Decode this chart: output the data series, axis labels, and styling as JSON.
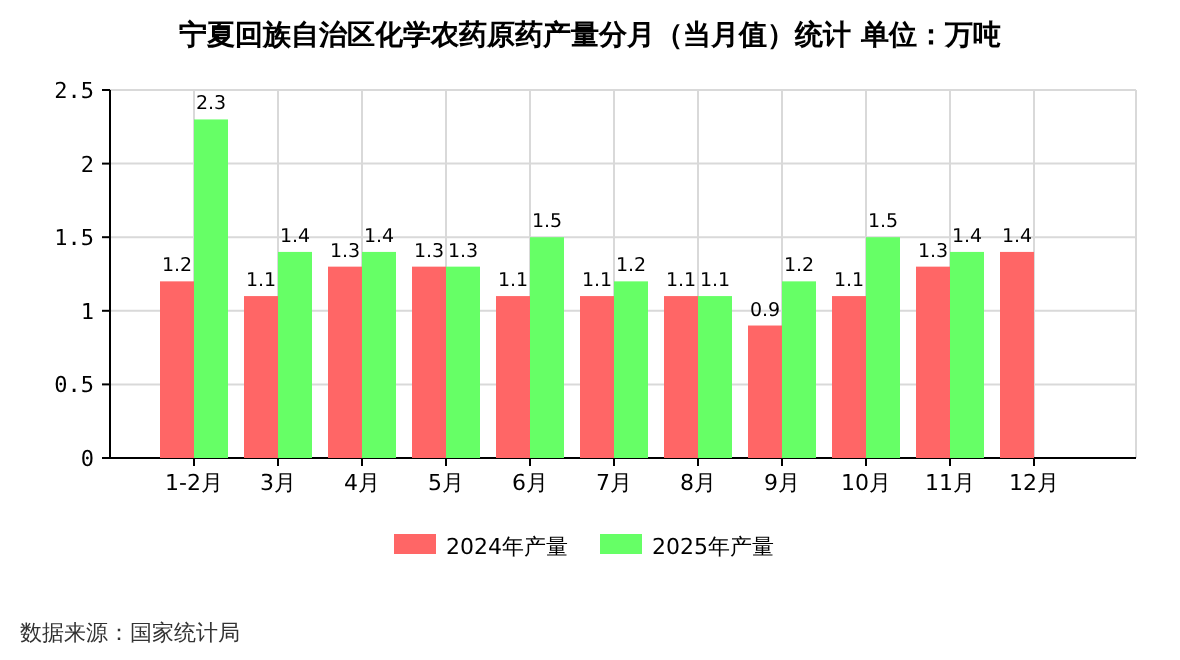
{
  "chart_data": {
    "type": "bar",
    "title": "宁夏回族自治区化学农药原药产量分月（当月值）统计 单位：万吨",
    "categories": [
      "1-2月",
      "3月",
      "4月",
      "5月",
      "6月",
      "7月",
      "8月",
      "9月",
      "10月",
      "11月",
      "12月"
    ],
    "series": [
      {
        "name": "2024年产量",
        "color": "#ff6666",
        "values": [
          1.2,
          1.1,
          1.3,
          1.3,
          1.1,
          1.1,
          1.1,
          0.9,
          1.1,
          1.3,
          1.4
        ]
      },
      {
        "name": "2025年产量",
        "color": "#66ff66",
        "values": [
          2.3,
          1.4,
          1.4,
          1.3,
          1.5,
          1.2,
          1.1,
          1.2,
          1.5,
          1.4,
          null
        ]
      }
    ],
    "ylim": [
      0,
      2.5
    ],
    "yticks": [
      0,
      0.5,
      1,
      1.5,
      2,
      2.5
    ],
    "grid": true,
    "legend": "bottom",
    "data_labels": true,
    "annotations": [
      "数据来源：国家统计局"
    ]
  }
}
